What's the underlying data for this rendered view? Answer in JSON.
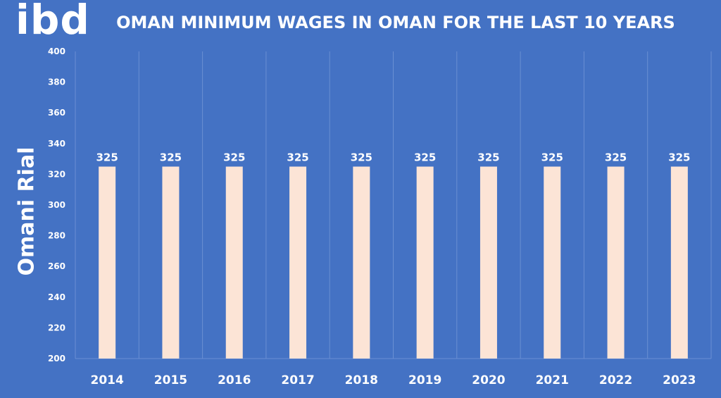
{
  "logo": "ibd",
  "chart_data": {
    "type": "bar",
    "title": "OMAN MINIMUM WAGES IN OMAN FOR THE LAST 10 YEARS",
    "xlabel": "",
    "ylabel": "Omani Rial",
    "categories": [
      "2014",
      "2015",
      "2016",
      "2017",
      "2018",
      "2019",
      "2020",
      "2021",
      "2022",
      "2023"
    ],
    "values": [
      325,
      325,
      325,
      325,
      325,
      325,
      325,
      325,
      325,
      325
    ],
    "ylim": [
      200,
      400
    ],
    "yticks": [
      200,
      220,
      240,
      260,
      280,
      300,
      320,
      340,
      360,
      380,
      400
    ],
    "grid": "vertical-category-dividers",
    "legend": "none",
    "colors": {
      "background": "#4472c4",
      "bar": "#fce4d6",
      "text": "#ffffff",
      "grid": "#6a8fd3"
    }
  }
}
